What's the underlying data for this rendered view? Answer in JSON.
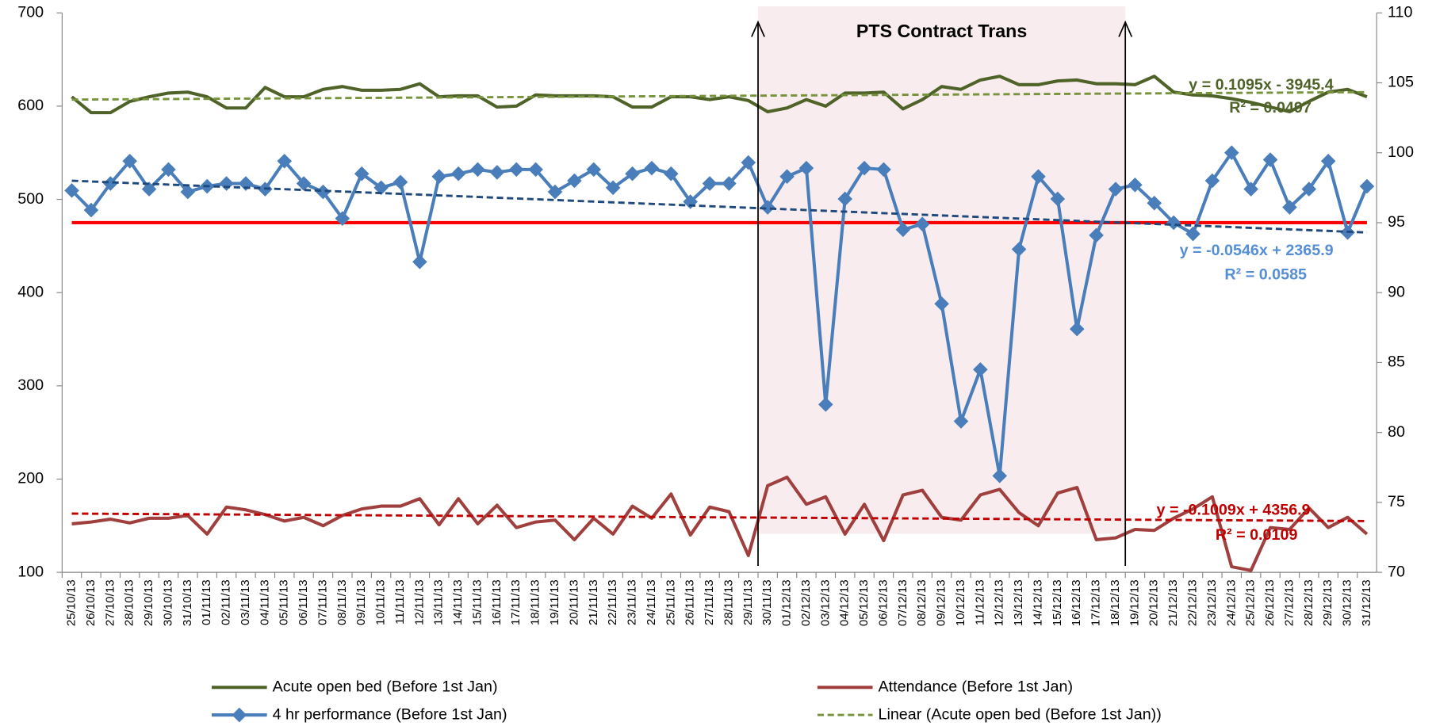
{
  "chart_data": {
    "type": "line",
    "categories": [
      "25/10/13",
      "26/10/13",
      "27/10/13",
      "28/10/13",
      "29/10/13",
      "30/10/13",
      "31/10/13",
      "01/11/13",
      "02/11/13",
      "03/11/13",
      "04/11/13",
      "05/11/13",
      "06/11/13",
      "07/11/13",
      "08/11/13",
      "09/11/13",
      "10/11/13",
      "11/11/13",
      "12/11/13",
      "13/11/13",
      "14/11/13",
      "15/11/13",
      "16/11/13",
      "17/11/13",
      "18/11/13",
      "19/11/13",
      "20/11/13",
      "21/11/13",
      "22/11/13",
      "23/11/13",
      "24/11/13",
      "25/11/13",
      "26/11/13",
      "27/11/13",
      "28/11/13",
      "29/11/13",
      "30/11/13",
      "01/12/13",
      "02/12/13",
      "03/12/13",
      "04/12/13",
      "05/12/13",
      "06/12/13",
      "07/12/13",
      "08/12/13",
      "09/12/13",
      "10/12/13",
      "11/12/13",
      "12/12/13",
      "13/12/13",
      "14/12/13",
      "15/12/13",
      "16/12/13",
      "17/12/13",
      "18/12/13",
      "19/12/13",
      "20/12/13",
      "21/12/13",
      "22/12/13",
      "23/12/13",
      "24/12/13",
      "25/12/13",
      "26/12/13",
      "27/12/13",
      "28/12/13",
      "29/12/13",
      "30/12/13",
      "31/12/13"
    ],
    "ylim": [
      100,
      700
    ],
    "yticks": [
      100,
      200,
      300,
      400,
      500,
      600,
      700
    ],
    "y2lim": [
      70,
      110
    ],
    "y2ticks": [
      70,
      75,
      80,
      85,
      90,
      95,
      100,
      105,
      110
    ],
    "series": [
      {
        "name": "Acute open bed (Before 1st Jan)",
        "color": "#4F6228",
        "axis": "y",
        "values": [
          610,
          593,
          593,
          605,
          610,
          614,
          615,
          610,
          598,
          598,
          620,
          610,
          610,
          618,
          621,
          617,
          617,
          618,
          624,
          610,
          611,
          611,
          599,
          600,
          612,
          611,
          611,
          611,
          610,
          599,
          599,
          610,
          610,
          607,
          610,
          606,
          594,
          598,
          607,
          600,
          614,
          614,
          615,
          597,
          607,
          621,
          618,
          628,
          632,
          623,
          623,
          627,
          628,
          624,
          624,
          623,
          632,
          615,
          612,
          611,
          608,
          604,
          599,
          594,
          605,
          615,
          618,
          610
        ]
      },
      {
        "name": "Attendance (Before 1st Jan)",
        "color": "#A0403E",
        "axis": "y",
        "values": [
          152,
          154,
          157,
          153,
          158,
          158,
          161,
          141,
          170,
          167,
          162,
          155,
          159,
          150,
          161,
          168,
          171,
          171,
          179,
          151,
          179,
          152,
          172,
          148,
          154,
          156,
          135,
          158,
          141,
          171,
          158,
          184,
          140,
          170,
          165,
          118,
          193,
          202,
          173,
          181,
          141,
          173,
          134,
          183,
          188,
          159,
          156,
          183,
          189,
          164,
          150,
          185,
          191,
          135,
          137,
          146,
          145,
          158,
          168,
          181,
          106,
          102,
          148,
          146,
          169,
          148,
          159,
          141
        ]
      },
      {
        "name": "4 hr performance (Before 1st Jan)",
        "color": "#4A7EBB",
        "axis": "y2",
        "marker": "diamond",
        "values": [
          97.3,
          95.9,
          97.8,
          99.4,
          97.4,
          98.8,
          97.2,
          97.6,
          97.8,
          97.8,
          97.4,
          99.4,
          97.8,
          97.2,
          95.3,
          98.5,
          97.5,
          97.9,
          92.2,
          98.3,
          98.5,
          98.8,
          98.6,
          98.8,
          98.8,
          97.2,
          98.0,
          98.8,
          97.5,
          98.5,
          98.9,
          98.5,
          96.5,
          97.8,
          97.8,
          99.3,
          96.1,
          98.3,
          98.9,
          82,
          96.7,
          98.9,
          98.8,
          94.5,
          94.9,
          89.2,
          80.8,
          84.5,
          76.9,
          93.1,
          98.3,
          96.7,
          87.4,
          94.1,
          97.4,
          97.7,
          96.4,
          95.0,
          94.2,
          98.0,
          100,
          97.4,
          99.5,
          96.1,
          97.4,
          99.4,
          94.3,
          97.6
        ]
      }
    ],
    "trendlines": [
      {
        "name": "Linear (Acute open bed (Before 1st Jan))",
        "series": 0,
        "color": "#77933C",
        "values": [
          607,
          615
        ],
        "equation": "y = 0.1095x - 3945.4",
        "r2": "R² = 0.0497",
        "label_color": "#4F6228"
      },
      {
        "series": 2,
        "color": "#1F497D",
        "values": [
          98.0,
          94.3
        ],
        "equation": "y = -0.0546x + 2365.9",
        "r2": "R² = 0.0585",
        "label_color": "#558ED5"
      },
      {
        "series": 1,
        "color": "#C00000",
        "values": [
          163,
          155
        ],
        "equation": "y = -0.1009x + 4356.9",
        "r2": "R² = 0.0109",
        "label_color": "#C00000"
      }
    ],
    "reference_line": {
      "value": 95,
      "axis": "y2",
      "color": "#FF0000"
    },
    "shaded_region": {
      "label": "PTS Contract Trans",
      "from": "29/11/13",
      "to": "19/12/13",
      "color": "#F8ECEE"
    }
  }
}
